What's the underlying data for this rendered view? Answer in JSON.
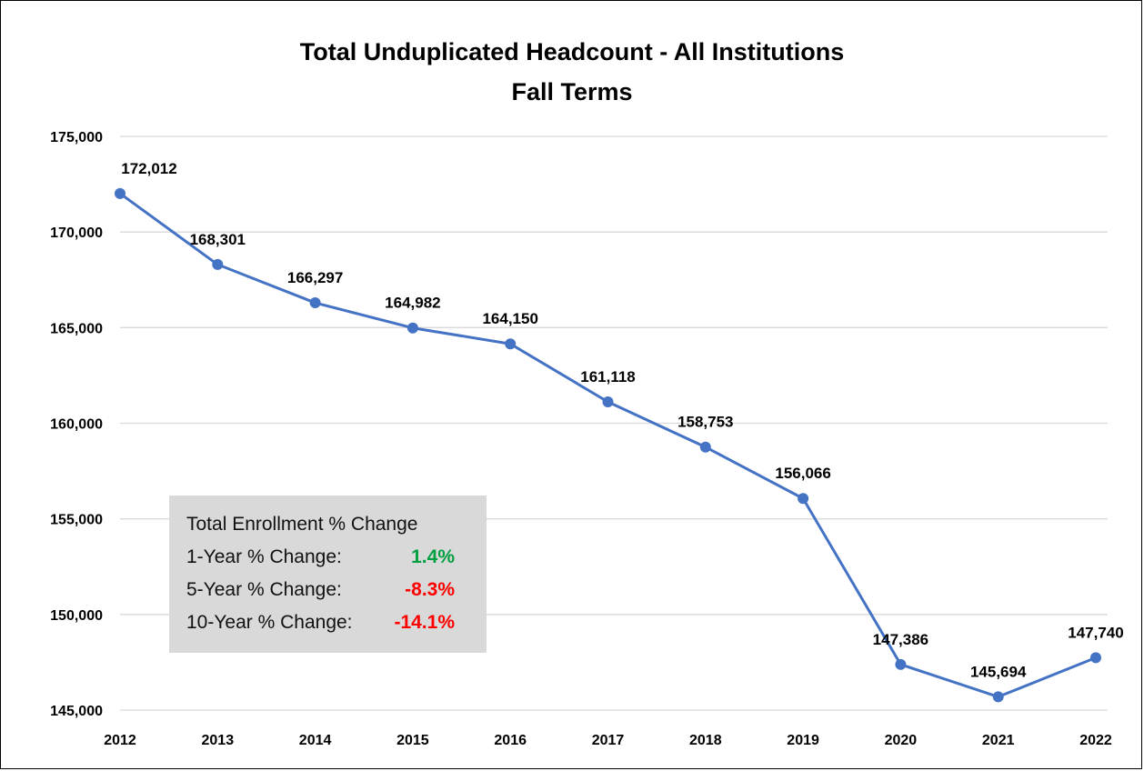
{
  "chart_data": {
    "type": "line",
    "title": "Total Unduplicated Headcount - All Institutions",
    "subtitle": "Fall Terms",
    "xlabel": "",
    "ylabel": "",
    "categories": [
      "2012",
      "2013",
      "2014",
      "2015",
      "2016",
      "2017",
      "2018",
      "2019",
      "2020",
      "2021",
      "2022"
    ],
    "series": [
      {
        "values": [
          172012,
          168301,
          166297,
          164982,
          164150,
          161118,
          158753,
          156066,
          147386,
          145694,
          147740
        ],
        "data_labels": [
          "172,012",
          "168,301",
          "166,297",
          "164,982",
          "164,150",
          "161,118",
          "158,753",
          "156,066",
          "147,386",
          "145,694",
          "147,740"
        ],
        "color": "#4472c4"
      }
    ],
    "ylim": [
      145000,
      175000
    ],
    "yticks": [
      145000,
      150000,
      155000,
      160000,
      165000,
      170000,
      175000
    ],
    "ytick_labels": [
      "145,000",
      "150,000",
      "155,000",
      "160,000",
      "165,000",
      "170,000",
      "175,000"
    ],
    "grid": true,
    "legend": "none"
  },
  "summary_box": {
    "heading": "Total Enrollment % Change",
    "rows": [
      {
        "label": "1-Year % Change:",
        "value": "1.4%",
        "color": "#00a040"
      },
      {
        "label": "5-Year % Change:",
        "value": "-8.3%",
        "color": "#ff0000"
      },
      {
        "label": "10-Year % Change:",
        "value": "-14.1%",
        "color": "#ff0000"
      }
    ]
  },
  "colors": {
    "gridline": "#d9d9d9",
    "text": "#000000",
    "box_background": "#d9d9d9"
  }
}
